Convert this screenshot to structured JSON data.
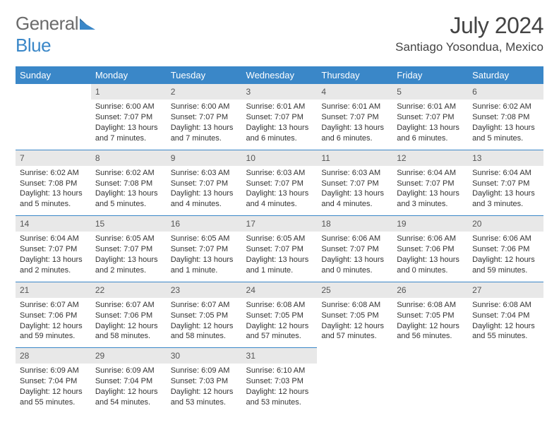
{
  "logo": {
    "word1": "General",
    "word2": "Blue"
  },
  "title": "July 2024",
  "location": "Santiago Yosondua, Mexico",
  "colors": {
    "header_bg": "#3a87c8",
    "header_fg": "#ffffff",
    "daynum_bg": "#e8e8e8",
    "daynum_fg": "#555555",
    "row_divider": "#3a87c8",
    "text": "#333333",
    "logo_gray": "#6b6b6b",
    "logo_blue": "#3a87c8"
  },
  "weekdays": [
    "Sunday",
    "Monday",
    "Tuesday",
    "Wednesday",
    "Thursday",
    "Friday",
    "Saturday"
  ],
  "startOffset": 1,
  "days": [
    {
      "n": "1",
      "sr": "Sunrise: 6:00 AM",
      "ss": "Sunset: 7:07 PM",
      "dl": "Daylight: 13 hours and 7 minutes."
    },
    {
      "n": "2",
      "sr": "Sunrise: 6:00 AM",
      "ss": "Sunset: 7:07 PM",
      "dl": "Daylight: 13 hours and 7 minutes."
    },
    {
      "n": "3",
      "sr": "Sunrise: 6:01 AM",
      "ss": "Sunset: 7:07 PM",
      "dl": "Daylight: 13 hours and 6 minutes."
    },
    {
      "n": "4",
      "sr": "Sunrise: 6:01 AM",
      "ss": "Sunset: 7:07 PM",
      "dl": "Daylight: 13 hours and 6 minutes."
    },
    {
      "n": "5",
      "sr": "Sunrise: 6:01 AM",
      "ss": "Sunset: 7:07 PM",
      "dl": "Daylight: 13 hours and 6 minutes."
    },
    {
      "n": "6",
      "sr": "Sunrise: 6:02 AM",
      "ss": "Sunset: 7:08 PM",
      "dl": "Daylight: 13 hours and 5 minutes."
    },
    {
      "n": "7",
      "sr": "Sunrise: 6:02 AM",
      "ss": "Sunset: 7:08 PM",
      "dl": "Daylight: 13 hours and 5 minutes."
    },
    {
      "n": "8",
      "sr": "Sunrise: 6:02 AM",
      "ss": "Sunset: 7:08 PM",
      "dl": "Daylight: 13 hours and 5 minutes."
    },
    {
      "n": "9",
      "sr": "Sunrise: 6:03 AM",
      "ss": "Sunset: 7:07 PM",
      "dl": "Daylight: 13 hours and 4 minutes."
    },
    {
      "n": "10",
      "sr": "Sunrise: 6:03 AM",
      "ss": "Sunset: 7:07 PM",
      "dl": "Daylight: 13 hours and 4 minutes."
    },
    {
      "n": "11",
      "sr": "Sunrise: 6:03 AM",
      "ss": "Sunset: 7:07 PM",
      "dl": "Daylight: 13 hours and 4 minutes."
    },
    {
      "n": "12",
      "sr": "Sunrise: 6:04 AM",
      "ss": "Sunset: 7:07 PM",
      "dl": "Daylight: 13 hours and 3 minutes."
    },
    {
      "n": "13",
      "sr": "Sunrise: 6:04 AM",
      "ss": "Sunset: 7:07 PM",
      "dl": "Daylight: 13 hours and 3 minutes."
    },
    {
      "n": "14",
      "sr": "Sunrise: 6:04 AM",
      "ss": "Sunset: 7:07 PM",
      "dl": "Daylight: 13 hours and 2 minutes."
    },
    {
      "n": "15",
      "sr": "Sunrise: 6:05 AM",
      "ss": "Sunset: 7:07 PM",
      "dl": "Daylight: 13 hours and 2 minutes."
    },
    {
      "n": "16",
      "sr": "Sunrise: 6:05 AM",
      "ss": "Sunset: 7:07 PM",
      "dl": "Daylight: 13 hours and 1 minute."
    },
    {
      "n": "17",
      "sr": "Sunrise: 6:05 AM",
      "ss": "Sunset: 7:07 PM",
      "dl": "Daylight: 13 hours and 1 minute."
    },
    {
      "n": "18",
      "sr": "Sunrise: 6:06 AM",
      "ss": "Sunset: 7:07 PM",
      "dl": "Daylight: 13 hours and 0 minutes."
    },
    {
      "n": "19",
      "sr": "Sunrise: 6:06 AM",
      "ss": "Sunset: 7:06 PM",
      "dl": "Daylight: 13 hours and 0 minutes."
    },
    {
      "n": "20",
      "sr": "Sunrise: 6:06 AM",
      "ss": "Sunset: 7:06 PM",
      "dl": "Daylight: 12 hours and 59 minutes."
    },
    {
      "n": "21",
      "sr": "Sunrise: 6:07 AM",
      "ss": "Sunset: 7:06 PM",
      "dl": "Daylight: 12 hours and 59 minutes."
    },
    {
      "n": "22",
      "sr": "Sunrise: 6:07 AM",
      "ss": "Sunset: 7:06 PM",
      "dl": "Daylight: 12 hours and 58 minutes."
    },
    {
      "n": "23",
      "sr": "Sunrise: 6:07 AM",
      "ss": "Sunset: 7:05 PM",
      "dl": "Daylight: 12 hours and 58 minutes."
    },
    {
      "n": "24",
      "sr": "Sunrise: 6:08 AM",
      "ss": "Sunset: 7:05 PM",
      "dl": "Daylight: 12 hours and 57 minutes."
    },
    {
      "n": "25",
      "sr": "Sunrise: 6:08 AM",
      "ss": "Sunset: 7:05 PM",
      "dl": "Daylight: 12 hours and 57 minutes."
    },
    {
      "n": "26",
      "sr": "Sunrise: 6:08 AM",
      "ss": "Sunset: 7:05 PM",
      "dl": "Daylight: 12 hours and 56 minutes."
    },
    {
      "n": "27",
      "sr": "Sunrise: 6:08 AM",
      "ss": "Sunset: 7:04 PM",
      "dl": "Daylight: 12 hours and 55 minutes."
    },
    {
      "n": "28",
      "sr": "Sunrise: 6:09 AM",
      "ss": "Sunset: 7:04 PM",
      "dl": "Daylight: 12 hours and 55 minutes."
    },
    {
      "n": "29",
      "sr": "Sunrise: 6:09 AM",
      "ss": "Sunset: 7:04 PM",
      "dl": "Daylight: 12 hours and 54 minutes."
    },
    {
      "n": "30",
      "sr": "Sunrise: 6:09 AM",
      "ss": "Sunset: 7:03 PM",
      "dl": "Daylight: 12 hours and 53 minutes."
    },
    {
      "n": "31",
      "sr": "Sunrise: 6:10 AM",
      "ss": "Sunset: 7:03 PM",
      "dl": "Daylight: 12 hours and 53 minutes."
    }
  ]
}
